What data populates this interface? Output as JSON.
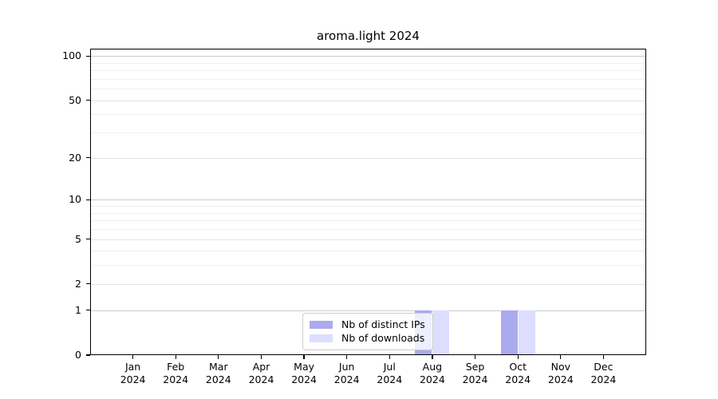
{
  "chart_data": {
    "type": "bar",
    "title": "aroma.light 2024",
    "x_categories": [
      "Jan 2024",
      "Feb 2024",
      "Mar 2024",
      "Apr 2024",
      "May 2024",
      "Jun 2024",
      "Jul 2024",
      "Aug 2024",
      "Sep 2024",
      "Oct 2024",
      "Nov 2024",
      "Dec 2024"
    ],
    "series": [
      {
        "name": "Nb of distinct IPs",
        "color": "#AAAAEE",
        "values": [
          0,
          0,
          0,
          0,
          0,
          0,
          0,
          1,
          0,
          1,
          0,
          0
        ]
      },
      {
        "name": "Nb of downloads",
        "color": "#DDDDFF",
        "values": [
          0,
          0,
          0,
          0,
          0,
          0,
          0,
          1,
          0,
          1,
          0,
          0
        ]
      }
    ],
    "y_axis": {
      "scale": "log10(1+x)",
      "tick_values": [
        100,
        50,
        20,
        10,
        5,
        2,
        1,
        0
      ],
      "ylim": [
        0,
        112
      ],
      "gridlines_major": [
        1,
        10,
        100
      ],
      "gridlines_mid": [
        2,
        5,
        20,
        50
      ],
      "gridlines_minor": [
        3,
        4,
        6,
        7,
        8,
        9,
        30,
        40,
        60,
        70,
        80,
        90
      ]
    },
    "legend": {
      "position": "inside-bottom-center",
      "entries": [
        "Nb of distinct IPs",
        "Nb of downloads"
      ]
    },
    "grid": true
  }
}
